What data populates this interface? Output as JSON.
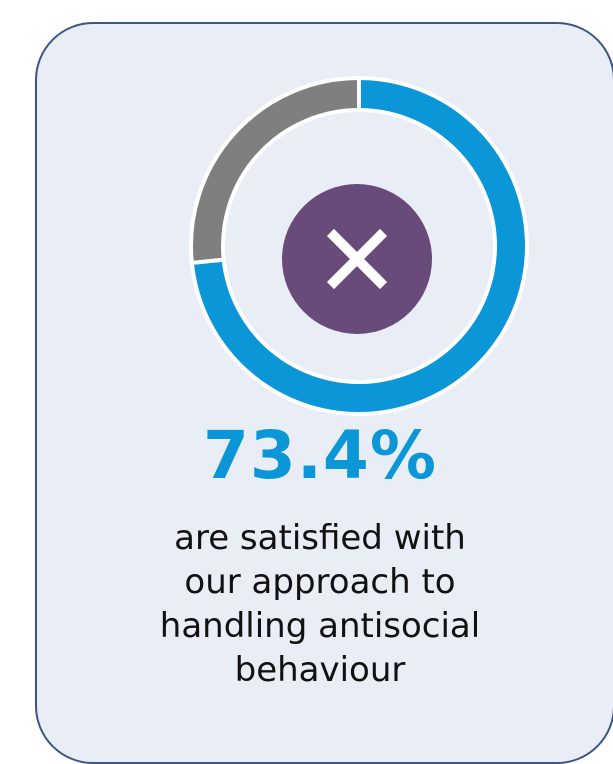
{
  "chart_data": {
    "type": "pie",
    "style": "donut",
    "value_label": "73.4%",
    "slices": [
      {
        "label": "are satisfied",
        "value": 73.4,
        "color": "#0b96d8"
      },
      {
        "label": "",
        "value": 26.6,
        "color": "#7f7f7f"
      }
    ],
    "center_icon": "close-icon",
    "caption_lines": [
      "are satisfied with",
      "our approach to",
      "handling antisocial",
      "behaviour"
    ]
  },
  "colors": {
    "card_background": "#e9edf5",
    "card_border": "#3b5683",
    "accent_blue": "#0b96d8",
    "remainder_gray": "#7f7f7f",
    "badge_purple": "#684a7b"
  }
}
